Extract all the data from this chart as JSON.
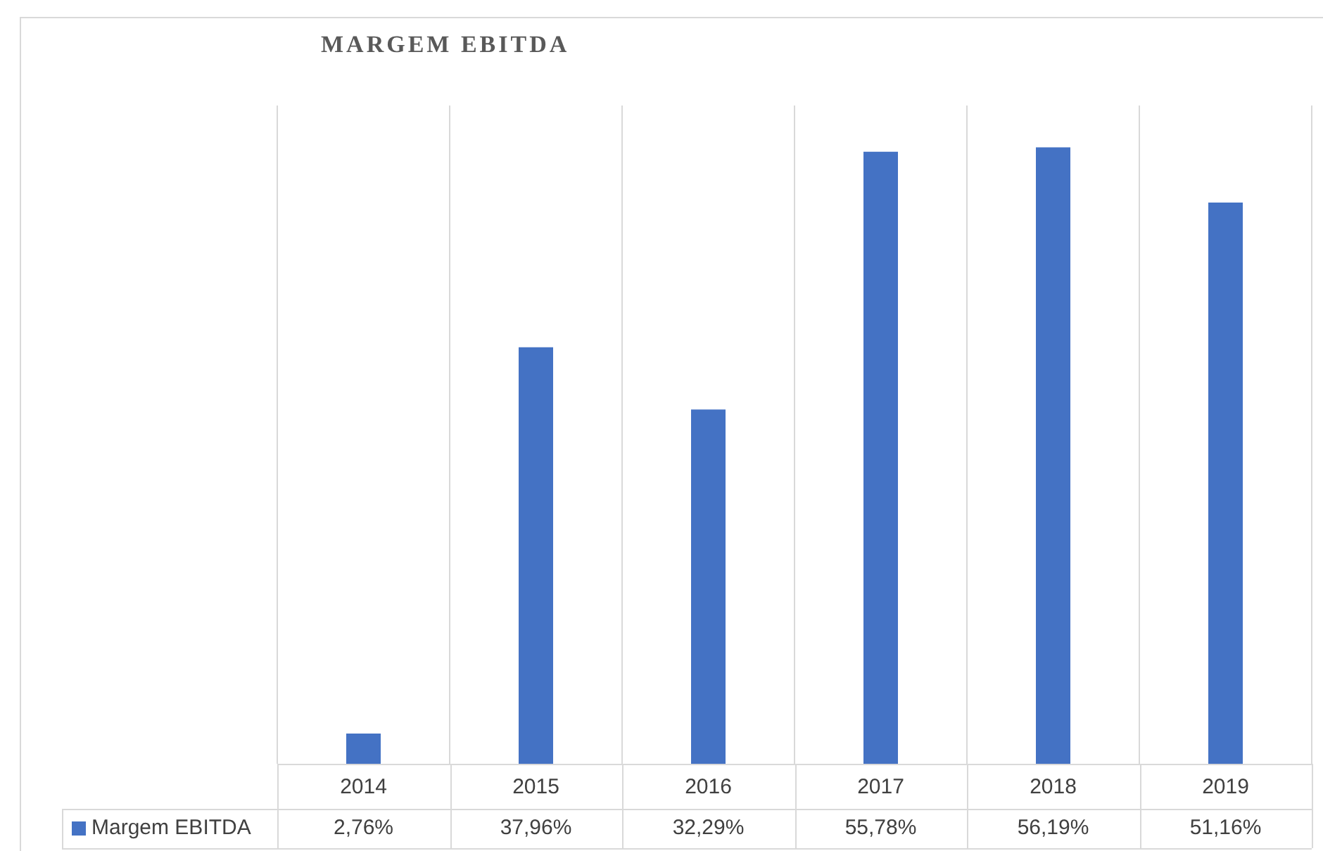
{
  "chart_data": {
    "type": "bar",
    "title": "MARGEM EBITDA",
    "categories": [
      "2014",
      "2015",
      "2016",
      "2017",
      "2018",
      "2019"
    ],
    "series": [
      {
        "name": "Margem EBITDA",
        "color": "#4472c4",
        "values": [
          2.76,
          37.96,
          32.29,
          55.78,
          56.19,
          51.16
        ],
        "value_labels": [
          "2,76%",
          "37,96%",
          "32,29%",
          "55,78%",
          "56,19%",
          "51,16%"
        ]
      }
    ],
    "grid": "x",
    "legend": "bottom"
  }
}
